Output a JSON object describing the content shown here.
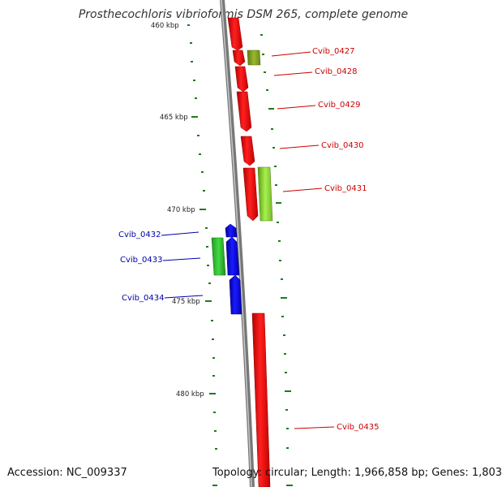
{
  "title": "Prosthecochloris vibrioformis DSM 265, complete genome",
  "accession": "Accession: NC_009337",
  "stats": "Topology: circular; Length: 1,966,858 bp; Genes: 1,803",
  "scale_labels": [
    "460 kbp",
    "465 kbp",
    "470 kbp",
    "475 kbp",
    "480 kbp"
  ],
  "gene_labels": [
    {
      "text": "Cvib_0427",
      "color": "#cc0000"
    },
    {
      "text": "Cvib_0428",
      "color": "#cc0000"
    },
    {
      "text": "Cvib_0429",
      "color": "#cc0000"
    },
    {
      "text": "Cvib_0430",
      "color": "#cc0000"
    },
    {
      "text": "Cvib_0431",
      "color": "#cc0000"
    },
    {
      "text": "Cvib_0432",
      "color": "#0000aa"
    },
    {
      "text": "Cvib_0433",
      "color": "#0000aa"
    },
    {
      "text": "Cvib_0434",
      "color": "#0000aa"
    },
    {
      "text": "Cvib_0435",
      "color": "#cc0000"
    }
  ],
  "colors": {
    "forward_cds": "#ff0000",
    "reverse_cds": "#0000ff",
    "gc_positive": "#8fdc3c",
    "gc_negative": "#2e9f2e",
    "olive_feature": "#7a9a20",
    "backbone": "#888888",
    "tick": "#1f7a1f"
  }
}
